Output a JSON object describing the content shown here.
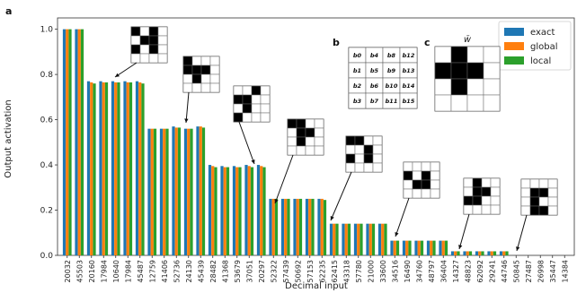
{
  "panel_labels": {
    "a": "a",
    "b": "b",
    "c": "c"
  },
  "w_label": "w̄",
  "bit_grid": [
    [
      "b0",
      "b4",
      "b8",
      "b12"
    ],
    [
      "b1",
      "b5",
      "b9",
      "b13"
    ],
    [
      "b2",
      "b6",
      "b10",
      "b14"
    ],
    [
      "b3",
      "b7",
      "b11",
      "b15"
    ]
  ],
  "w_pattern": [
    [
      0,
      1,
      0,
      0
    ],
    [
      1,
      1,
      1,
      0
    ],
    [
      0,
      1,
      0,
      0
    ],
    [
      0,
      0,
      0,
      0
    ]
  ],
  "insets": [
    {
      "pattern": [
        [
          1,
          0,
          1,
          0
        ],
        [
          0,
          1,
          1,
          0
        ],
        [
          1,
          0,
          1,
          0
        ],
        [
          0,
          0,
          0,
          0
        ]
      ]
    },
    {
      "pattern": [
        [
          1,
          0,
          0,
          0
        ],
        [
          1,
          1,
          1,
          0
        ],
        [
          0,
          1,
          0,
          0
        ],
        [
          0,
          0,
          0,
          0
        ]
      ]
    },
    {
      "pattern": [
        [
          0,
          0,
          1,
          0
        ],
        [
          1,
          1,
          0,
          0
        ],
        [
          0,
          1,
          0,
          0
        ],
        [
          1,
          0,
          0,
          0
        ]
      ]
    },
    {
      "pattern": [
        [
          1,
          1,
          0,
          0
        ],
        [
          0,
          1,
          1,
          0
        ],
        [
          0,
          1,
          0,
          0
        ],
        [
          0,
          0,
          0,
          0
        ]
      ]
    },
    {
      "pattern": [
        [
          1,
          1,
          0,
          0
        ],
        [
          0,
          0,
          1,
          0
        ],
        [
          1,
          0,
          1,
          0
        ],
        [
          0,
          0,
          0,
          0
        ]
      ]
    },
    {
      "pattern": [
        [
          0,
          0,
          0,
          0
        ],
        [
          1,
          0,
          1,
          0
        ],
        [
          0,
          1,
          1,
          0
        ],
        [
          0,
          0,
          0,
          0
        ]
      ]
    },
    {
      "pattern": [
        [
          0,
          1,
          0,
          0
        ],
        [
          0,
          1,
          1,
          0
        ],
        [
          1,
          1,
          0,
          0
        ],
        [
          0,
          0,
          0,
          0
        ]
      ]
    },
    {
      "pattern": [
        [
          0,
          0,
          0,
          0
        ],
        [
          0,
          1,
          1,
          0
        ],
        [
          0,
          1,
          0,
          0
        ],
        [
          0,
          1,
          1,
          0
        ]
      ]
    }
  ],
  "chart_data": {
    "type": "bar",
    "xlabel": "Decimal input",
    "ylabel": "Output activation",
    "ylim": [
      0,
      1.05
    ],
    "yticks": [
      "0.0",
      "0.2",
      "0.4",
      "0.6",
      "0.8",
      "1.0"
    ],
    "legend_placement": "top-right",
    "categories": [
      "20032",
      "45503",
      "20160",
      "17984",
      "10640",
      "17984",
      "45487",
      "12759",
      "41406",
      "52736",
      "24130",
      "45439",
      "28482",
      "41368",
      "53679",
      "37051",
      "20297",
      "52322",
      "57439",
      "50692",
      "57153",
      "62235",
      "62415",
      "43318",
      "57780",
      "21000",
      "33600",
      "34516",
      "16490",
      "34760",
      "48797",
      "36404",
      "14327",
      "48823",
      "62092",
      "29241",
      "44746",
      "50845",
      "27487",
      "26998",
      "35447",
      "14384"
    ],
    "series": [
      {
        "name": "exact",
        "color": "#1f77b4",
        "values": [
          1.0,
          1.0,
          0.77,
          0.77,
          0.77,
          0.77,
          0.77,
          0.56,
          0.56,
          0.57,
          0.56,
          0.57,
          0.4,
          0.395,
          0.395,
          0.4,
          0.4,
          0.25,
          0.25,
          0.25,
          0.25,
          0.25,
          0.14,
          0.14,
          0.14,
          0.14,
          0.14,
          0.065,
          0.065,
          0.065,
          0.065,
          0.065,
          0.018,
          0.018,
          0.018,
          0.018,
          0.018,
          0.0,
          0.0,
          0.0,
          0.0,
          0.0
        ]
      },
      {
        "name": "global",
        "color": "#ff7f0e",
        "values": [
          1.0,
          1.0,
          0.765,
          0.765,
          0.765,
          0.765,
          0.765,
          0.56,
          0.56,
          0.565,
          0.56,
          0.57,
          0.395,
          0.39,
          0.39,
          0.395,
          0.395,
          0.25,
          0.25,
          0.25,
          0.25,
          0.25,
          0.14,
          0.14,
          0.14,
          0.14,
          0.14,
          0.065,
          0.065,
          0.065,
          0.065,
          0.065,
          0.018,
          0.018,
          0.018,
          0.018,
          0.018,
          0.0,
          0.0,
          0.0,
          0.0,
          0.0
        ]
      },
      {
        "name": "local",
        "color": "#2ca02c",
        "values": [
          1.0,
          1.0,
          0.76,
          0.765,
          0.765,
          0.765,
          0.76,
          0.56,
          0.56,
          0.565,
          0.56,
          0.565,
          0.39,
          0.39,
          0.39,
          0.39,
          0.39,
          0.25,
          0.25,
          0.25,
          0.25,
          0.245,
          0.14,
          0.14,
          0.14,
          0.14,
          0.14,
          0.065,
          0.065,
          0.065,
          0.065,
          0.065,
          0.018,
          0.018,
          0.018,
          0.018,
          0.018,
          0.0,
          0.0,
          0.0,
          0.0,
          0.0
        ]
      }
    ]
  }
}
